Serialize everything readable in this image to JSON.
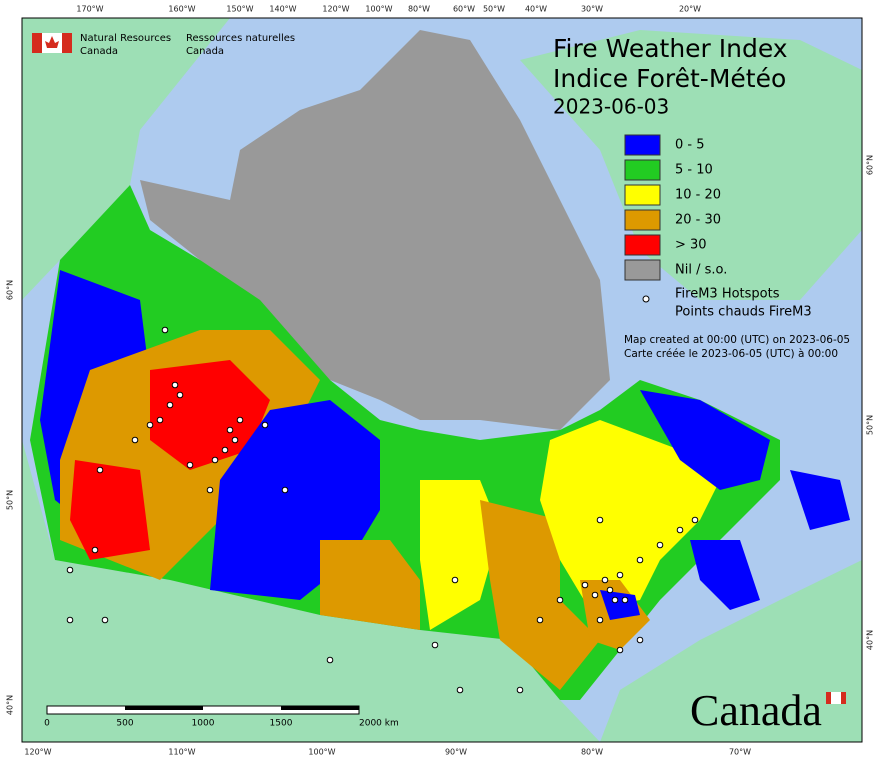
{
  "header": {
    "agency_en": [
      "Natural Resources",
      "Canada"
    ],
    "agency_fr": [
      "Ressources naturelles",
      "Canada"
    ]
  },
  "title": [
    "Fire Weather Index",
    "Indice Forêt-Météo",
    "2023-06-03"
  ],
  "legend": {
    "items": [
      {
        "label": "0 - 5",
        "color": "#0000ff"
      },
      {
        "label": "5 - 10",
        "color": "#22cc22"
      },
      {
        "label": "10 - 20",
        "color": "#ffff00"
      },
      {
        "label": "20 - 30",
        "color": "#dd9900"
      },
      {
        "label": "> 30",
        "color": "#ff0000"
      },
      {
        "label": "Nil / s.o.",
        "color": "#999999"
      }
    ],
    "hotspots": [
      "FireM3 Hotspots",
      "Points chauds FireM3"
    ]
  },
  "notes": [
    "Map created at 00:00 (UTC) on 2023-06-05",
    "Carte créée le 2023-06-05 (UTC) à 00:00"
  ],
  "graticule": {
    "top": [
      "170°W",
      "160°W",
      "150°W",
      "140°W",
      "120°W",
      "100°W",
      "80°W",
      "60°W",
      "50°W",
      "40°W",
      "30°W",
      "20°W"
    ],
    "bottom": [
      "120°W",
      "110°W",
      "100°W",
      "90°W",
      "80°W",
      "70°W"
    ],
    "left": [
      "60°N",
      "50°N",
      "40°N"
    ],
    "right": [
      "60°N",
      "50°N",
      "40°N"
    ]
  },
  "scale_bar": [
    "0",
    "500",
    "1000",
    "1500",
    "2000 km"
  ],
  "wordmark": "Canada"
}
